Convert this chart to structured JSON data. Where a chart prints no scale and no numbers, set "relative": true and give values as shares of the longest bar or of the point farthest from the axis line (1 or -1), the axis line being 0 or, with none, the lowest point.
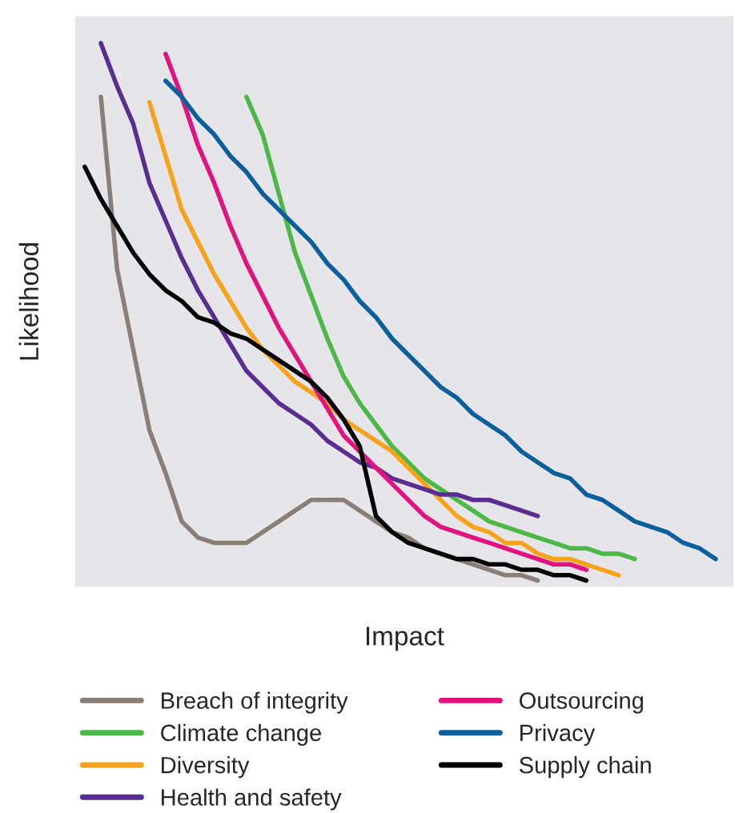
{
  "chart_data": {
    "type": "line",
    "xlabel": "Impact",
    "ylabel": "Likelihood",
    "relative": true,
    "legend": "bottom",
    "marker": "none",
    "line_style": "solid",
    "categories": [
      null,
      null,
      null,
      null,
      null,
      null,
      null,
      null,
      null,
      null,
      null,
      null,
      null,
      null,
      null,
      null,
      null,
      null,
      null,
      null,
      null,
      null,
      null,
      null,
      null,
      null,
      null,
      null,
      null,
      null,
      null,
      null,
      null,
      null,
      null,
      null,
      null,
      null,
      null,
      null
    ],
    "series": [
      {
        "name": "Breach of integrity",
        "color": "#8a7f76",
        "values": [
          null,
          0.9,
          0.58,
          0.43,
          0.28,
          0.2,
          0.11,
          0.08,
          0.07,
          0.07,
          0.07,
          0.09,
          0.11,
          0.13,
          0.15,
          0.15,
          0.15,
          0.13,
          0.11,
          0.09,
          0.08,
          0.06,
          0.05,
          0.04,
          0.03,
          0.02,
          0.01,
          0.01,
          0,
          null,
          null,
          null,
          null,
          null,
          null,
          null,
          null,
          null,
          null,
          null
        ]
      },
      {
        "name": "Climate change",
        "color": "#4cb848",
        "values": [
          null,
          null,
          null,
          null,
          null,
          null,
          null,
          null,
          null,
          null,
          0.9,
          0.83,
          0.72,
          0.61,
          0.53,
          0.45,
          0.38,
          0.33,
          0.29,
          0.25,
          0.22,
          0.19,
          0.17,
          0.15,
          0.13,
          0.11,
          0.1,
          0.09,
          0.08,
          0.07,
          0.06,
          0.06,
          0.05,
          0.05,
          0.04,
          null,
          null,
          null,
          null,
          null
        ]
      },
      {
        "name": "Diversity",
        "color": "#f7a21b",
        "values": [
          null,
          null,
          null,
          null,
          0.89,
          0.79,
          0.69,
          0.63,
          0.57,
          0.52,
          0.47,
          0.43,
          0.4,
          0.37,
          0.35,
          0.33,
          0.3,
          0.28,
          0.26,
          0.24,
          0.21,
          0.18,
          0.15,
          0.12,
          0.1,
          0.09,
          0.07,
          0.07,
          0.05,
          0.04,
          0.04,
          0.03,
          0.02,
          0.01,
          null,
          null,
          null,
          null,
          null,
          null
        ]
      },
      {
        "name": "Health and safety",
        "color": "#5a2d91",
        "values": [
          null,
          1.0,
          0.92,
          0.85,
          0.74,
          0.67,
          0.6,
          0.54,
          0.49,
          0.44,
          0.39,
          0.36,
          0.33,
          0.31,
          0.29,
          0.26,
          0.24,
          0.22,
          0.21,
          0.19,
          0.18,
          0.17,
          0.16,
          0.16,
          0.15,
          0.15,
          0.14,
          0.13,
          0.12,
          null,
          null,
          null,
          null,
          null,
          null,
          null,
          null,
          null,
          null,
          null
        ]
      },
      {
        "name": "Outsourcing",
        "color": "#e2127f",
        "values": [
          null,
          null,
          null,
          null,
          null,
          0.98,
          0.9,
          0.81,
          0.74,
          0.66,
          0.59,
          0.53,
          0.47,
          0.42,
          0.37,
          0.32,
          0.27,
          0.24,
          0.21,
          0.18,
          0.15,
          0.12,
          0.1,
          0.09,
          0.08,
          0.07,
          0.06,
          0.05,
          0.04,
          0.03,
          0.03,
          0.02,
          null,
          null,
          null,
          null,
          null,
          null,
          null,
          null
        ]
      },
      {
        "name": "Privacy",
        "color": "#0b5f9c",
        "values": [
          null,
          null,
          null,
          null,
          null,
          0.93,
          0.9,
          0.86,
          0.83,
          0.79,
          0.76,
          0.72,
          0.69,
          0.66,
          0.63,
          0.59,
          0.56,
          0.52,
          0.49,
          0.45,
          0.42,
          0.39,
          0.36,
          0.34,
          0.31,
          0.29,
          0.27,
          0.24,
          0.22,
          0.2,
          0.19,
          0.16,
          0.15,
          0.13,
          0.11,
          0.1,
          0.09,
          0.07,
          0.06,
          0.04
        ]
      },
      {
        "name": "Supply chain",
        "color": "#000000",
        "values": [
          0.77,
          0.71,
          0.66,
          0.61,
          0.57,
          0.54,
          0.52,
          0.49,
          0.48,
          0.46,
          0.45,
          0.43,
          0.41,
          0.39,
          0.37,
          0.34,
          0.3,
          0.25,
          0.12,
          0.09,
          0.07,
          0.06,
          0.05,
          0.04,
          0.04,
          0.03,
          0.03,
          0.02,
          0.02,
          0.01,
          0.01,
          0,
          null,
          null,
          null,
          null,
          null,
          null,
          null,
          null
        ]
      }
    ]
  }
}
